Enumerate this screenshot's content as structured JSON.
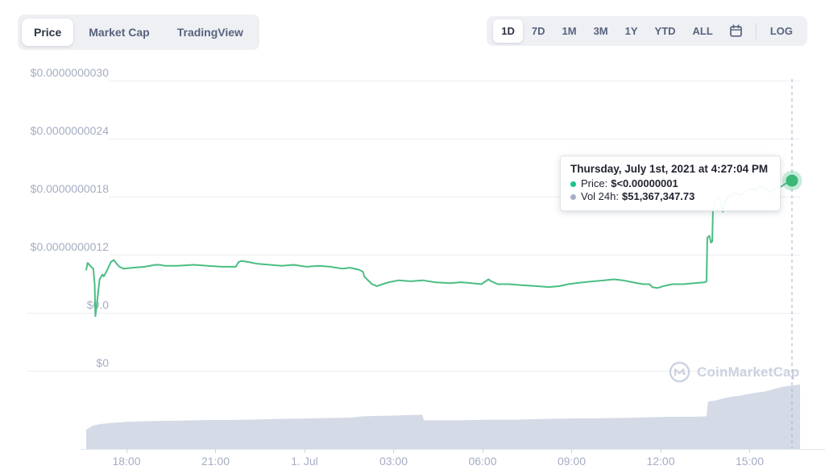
{
  "header": {
    "chart_tabs": [
      {
        "label": "Price",
        "active": true
      },
      {
        "label": "Market Cap",
        "active": false
      },
      {
        "label": "TradingView",
        "active": false
      }
    ],
    "ranges": [
      {
        "label": "1D",
        "active": true
      },
      {
        "label": "7D",
        "active": false
      },
      {
        "label": "1M",
        "active": false
      },
      {
        "label": "3M",
        "active": false
      },
      {
        "label": "1Y",
        "active": false
      },
      {
        "label": "YTD",
        "active": false
      },
      {
        "label": "ALL",
        "active": false
      }
    ],
    "calendar_icon": "calendar",
    "log_label": "LOG"
  },
  "tooltip": {
    "title": "Thursday, July 1st, 2021 at 4:27:04 PM",
    "rows": [
      {
        "label": "Price:",
        "value": "$<0.00000001",
        "bullet_color": "#16c784"
      },
      {
        "label": "Vol 24h:",
        "value": "$51,367,347.73",
        "bullet_color": "#a6b0c3"
      }
    ]
  },
  "watermark": {
    "text": "CoinMarketCap"
  },
  "colors": {
    "line": "#4abd83",
    "dot": "#3bb878",
    "halo": "rgba(74,189,131,0.3)",
    "volume": "#d4dae6",
    "crosshair": "#a6b0c8",
    "gridline": "#ebeef3"
  },
  "chart_data": {
    "type": "line",
    "title": "Cryptocurrency price chart, 1 day range",
    "legend": [
      "Price",
      "Vol 24h"
    ],
    "grid": true,
    "y_axis": {
      "unit": "USD",
      "gridlines": [
        {
          "label": "$0.0000000030",
          "price_e9": 3.0,
          "full_width": false
        },
        {
          "label": "$0.0000000024",
          "price_e9": 2.4,
          "full_width": false
        },
        {
          "label": "$0.0000000018",
          "price_e9": 1.8,
          "full_width": false
        },
        {
          "label": "$0.0000000012",
          "price_e9": 1.2,
          "full_width": false
        },
        {
          "label": "$0.0",
          "price_e9": 0.6,
          "full_width": true
        },
        {
          "label": "$0",
          "price_e9": 0.0,
          "full_width": true
        }
      ]
    },
    "x_axis": {
      "ticks": [
        "18:00",
        "21:00",
        "1. Jul",
        "03:00",
        "06:00",
        "09:00",
        "12:00",
        "15:00"
      ],
      "tick_interval": "3 hours"
    },
    "crosshair": {
      "time": "4:27:04 PM",
      "price_e9": 1.97,
      "vol_24h_usd_m": 51.37
    },
    "price_series": {
      "name": "Price",
      "unit": "1e-9 USD",
      "points": [
        [
          0,
          1.05
        ],
        [
          0.002,
          1.12
        ],
        [
          0.007,
          1.08
        ],
        [
          0.01,
          1.06
        ],
        [
          0.012,
          0.9
        ],
        [
          0.013,
          0.57
        ],
        [
          0.016,
          0.75
        ],
        [
          0.019,
          0.95
        ],
        [
          0.023,
          1.0
        ],
        [
          0.025,
          0.98
        ],
        [
          0.03,
          1.05
        ],
        [
          0.035,
          1.13
        ],
        [
          0.039,
          1.15
        ],
        [
          0.042,
          1.12
        ],
        [
          0.047,
          1.08
        ],
        [
          0.053,
          1.06
        ],
        [
          0.066,
          1.07
        ],
        [
          0.083,
          1.08
        ],
        [
          0.098,
          1.1
        ],
        [
          0.104,
          1.1
        ],
        [
          0.112,
          1.09
        ],
        [
          0.129,
          1.09
        ],
        [
          0.152,
          1.1
        ],
        [
          0.172,
          1.09
        ],
        [
          0.192,
          1.08
        ],
        [
          0.212,
          1.08
        ],
        [
          0.216,
          1.13
        ],
        [
          0.22,
          1.14
        ],
        [
          0.229,
          1.13
        ],
        [
          0.243,
          1.11
        ],
        [
          0.26,
          1.1
        ],
        [
          0.277,
          1.09
        ],
        [
          0.294,
          1.1
        ],
        [
          0.312,
          1.08
        ],
        [
          0.329,
          1.09
        ],
        [
          0.346,
          1.08
        ],
        [
          0.363,
          1.06
        ],
        [
          0.374,
          1.07
        ],
        [
          0.386,
          1.05
        ],
        [
          0.392,
          1.03
        ],
        [
          0.394,
          0.98
        ],
        [
          0.398,
          0.95
        ],
        [
          0.405,
          0.9
        ],
        [
          0.412,
          0.88
        ],
        [
          0.42,
          0.9
        ],
        [
          0.429,
          0.92
        ],
        [
          0.443,
          0.94
        ],
        [
          0.46,
          0.93
        ],
        [
          0.477,
          0.94
        ],
        [
          0.494,
          0.92
        ],
        [
          0.515,
          0.91
        ],
        [
          0.531,
          0.92
        ],
        [
          0.546,
          0.91
        ],
        [
          0.56,
          0.9
        ],
        [
          0.57,
          0.95
        ],
        [
          0.574,
          0.93
        ],
        [
          0.583,
          0.9
        ],
        [
          0.599,
          0.9
        ],
        [
          0.617,
          0.89
        ],
        [
          0.637,
          0.88
        ],
        [
          0.656,
          0.87
        ],
        [
          0.671,
          0.88
        ],
        [
          0.683,
          0.9
        ],
        [
          0.694,
          0.91
        ],
        [
          0.705,
          0.92
        ],
        [
          0.72,
          0.93
        ],
        [
          0.734,
          0.94
        ],
        [
          0.748,
          0.95
        ],
        [
          0.76,
          0.94
        ],
        [
          0.774,
          0.92
        ],
        [
          0.789,
          0.9
        ],
        [
          0.798,
          0.9
        ],
        [
          0.802,
          0.87
        ],
        [
          0.809,
          0.86
        ],
        [
          0.818,
          0.88
        ],
        [
          0.831,
          0.9
        ],
        [
          0.846,
          0.9
        ],
        [
          0.862,
          0.91
        ],
        [
          0.877,
          0.92
        ],
        [
          0.879,
          0.93
        ],
        [
          0.88,
          1.38
        ],
        [
          0.883,
          1.4
        ],
        [
          0.885,
          1.33
        ],
        [
          0.887,
          1.34
        ],
        [
          0.888,
          1.65
        ],
        [
          0.891,
          1.77
        ],
        [
          0.895,
          1.81
        ],
        [
          0.898,
          1.78
        ],
        [
          0.902,
          1.65
        ],
        [
          0.905,
          1.76
        ],
        [
          0.911,
          1.81
        ],
        [
          0.919,
          1.84
        ],
        [
          0.926,
          1.82
        ],
        [
          0.934,
          1.86
        ],
        [
          0.942,
          1.89
        ],
        [
          0.949,
          1.87
        ],
        [
          0.956,
          1.92
        ],
        [
          0.962,
          1.9
        ],
        [
          0.968,
          1.85
        ],
        [
          0.974,
          1.87
        ],
        [
          0.979,
          1.9
        ],
        [
          0.985,
          1.91
        ],
        [
          0.991,
          1.94
        ],
        [
          0.995,
          1.95
        ],
        [
          1,
          1.97
        ]
      ]
    },
    "volume_series": {
      "name": "Vol 24h",
      "unit": "USD millions",
      "max_usd_m": 51.37,
      "points": [
        [
          0,
          15.4
        ],
        [
          0.009,
          18.6
        ],
        [
          0.02,
          19.9
        ],
        [
          0.037,
          20.9
        ],
        [
          0.06,
          21.8
        ],
        [
          0.088,
          22.2
        ],
        [
          0.116,
          22.5
        ],
        [
          0.144,
          22.8
        ],
        [
          0.173,
          23.1
        ],
        [
          0.201,
          23.1
        ],
        [
          0.229,
          23.4
        ],
        [
          0.257,
          23.8
        ],
        [
          0.286,
          24.1
        ],
        [
          0.314,
          24.4
        ],
        [
          0.342,
          24.7
        ],
        [
          0.37,
          25.0
        ],
        [
          0.387,
          26.0
        ],
        [
          0.404,
          26.3
        ],
        [
          0.427,
          26.6
        ],
        [
          0.449,
          27.0
        ],
        [
          0.468,
          27.3
        ],
        [
          0.471,
          27.3
        ],
        [
          0.473,
          22.8
        ],
        [
          0.494,
          22.8
        ],
        [
          0.517,
          22.8
        ],
        [
          0.545,
          23.1
        ],
        [
          0.573,
          23.4
        ],
        [
          0.602,
          23.4
        ],
        [
          0.63,
          23.8
        ],
        [
          0.658,
          24.1
        ],
        [
          0.686,
          24.4
        ],
        [
          0.714,
          24.4
        ],
        [
          0.743,
          24.7
        ],
        [
          0.771,
          25.0
        ],
        [
          0.799,
          25.4
        ],
        [
          0.827,
          25.7
        ],
        [
          0.852,
          25.7
        ],
        [
          0.868,
          26.0
        ],
        [
          0.869,
          26.0
        ],
        [
          0.871,
          37.9
        ],
        [
          0.881,
          38.5
        ],
        [
          0.893,
          40.4
        ],
        [
          0.904,
          41.7
        ],
        [
          0.915,
          42.4
        ],
        [
          0.927,
          43.7
        ],
        [
          0.938,
          44.9
        ],
        [
          0.949,
          45.6
        ],
        [
          0.958,
          46.9
        ],
        [
          0.966,
          48.2
        ],
        [
          0.974,
          49.4
        ],
        [
          0.982,
          50.1
        ],
        [
          0.99,
          50.7
        ],
        [
          1,
          51.4
        ]
      ]
    }
  }
}
